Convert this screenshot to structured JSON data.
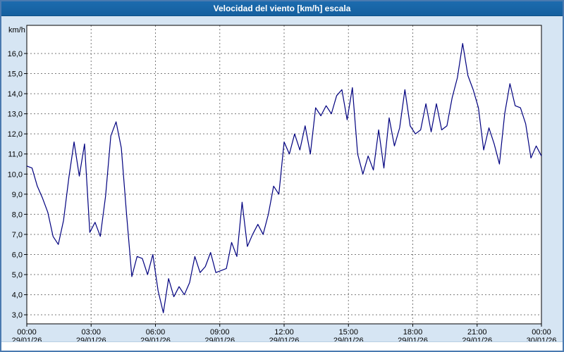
{
  "title": "Velocidad del viento [km/h] escala",
  "colors": {
    "title_bar": "#15609f",
    "background": "#d6e5f3",
    "plot_bg": "#ffffff",
    "line": "#00007f",
    "grid": "#7a7a7a",
    "axis": "#000000",
    "border": "#4a7ab0",
    "label_text": "#000000"
  },
  "chart_data": {
    "type": "line",
    "title": "Velocidad del viento [km/h] escala",
    "ylabel": "km/h",
    "xlabel": "",
    "grid": true,
    "legend_position": "none",
    "ylim": [
      2.55,
      17.4
    ],
    "yticks": [
      3,
      4,
      5,
      6,
      7,
      8,
      9,
      10,
      11,
      12,
      13,
      14,
      15,
      16
    ],
    "ytick_labels": [
      "3,0",
      "4,0",
      "5,0",
      "6,0",
      "7,0",
      "8,0",
      "9,0",
      "10,0",
      "11,0",
      "12,0",
      "13,0",
      "14,0",
      "15,0",
      "16,0"
    ],
    "x_start_hour": 0,
    "x_end_hour": 24,
    "points_evenly_spaced": true,
    "xticks_hours": [
      0,
      3,
      6,
      9,
      12,
      15,
      18,
      21,
      24
    ],
    "xtick_time_labels": [
      "00:00",
      "03:00",
      "06:00",
      "09:00",
      "12:00",
      "15:00",
      "18:00",
      "21:00",
      "00:00"
    ],
    "xtick_date_labels": [
      "29/01/26",
      "29/01/26",
      "29/01/26",
      "29/01/26",
      "29/01/26",
      "29/01/26",
      "29/01/26",
      "29/01/26",
      "30/01/26"
    ],
    "series": [
      {
        "name": "Velocidad del viento",
        "color": "#00007f",
        "values": [
          10.4,
          10.3,
          9.4,
          8.8,
          8.1,
          6.9,
          6.5,
          7.7,
          9.8,
          11.6,
          9.9,
          11.5,
          7.1,
          7.6,
          6.9,
          8.9,
          11.9,
          12.6,
          11.3,
          8.0,
          4.9,
          5.9,
          5.8,
          5.0,
          6.0,
          4.2,
          3.1,
          4.8,
          3.9,
          4.4,
          4.0,
          4.6,
          5.9,
          5.1,
          5.4,
          6.1,
          5.1,
          5.2,
          5.3,
          6.6,
          5.9,
          8.6,
          6.4,
          7.0,
          7.5,
          7.0,
          8.0,
          9.4,
          9.0,
          11.6,
          11.0,
          12.0,
          11.2,
          12.4,
          11.0,
          13.3,
          12.9,
          13.4,
          13.0,
          13.9,
          14.2,
          12.7,
          14.3,
          11.0,
          10.0,
          10.9,
          10.2,
          12.2,
          10.3,
          12.8,
          11.4,
          12.3,
          14.2,
          12.4,
          12.0,
          12.2,
          13.5,
          12.1,
          13.5,
          12.2,
          12.4,
          13.8,
          14.8,
          16.5,
          14.9,
          14.2,
          13.3,
          11.2,
          12.3,
          11.5,
          10.5,
          13.0,
          14.5,
          13.4,
          13.3,
          12.5,
          10.8,
          11.4,
          10.9
        ]
      }
    ]
  }
}
